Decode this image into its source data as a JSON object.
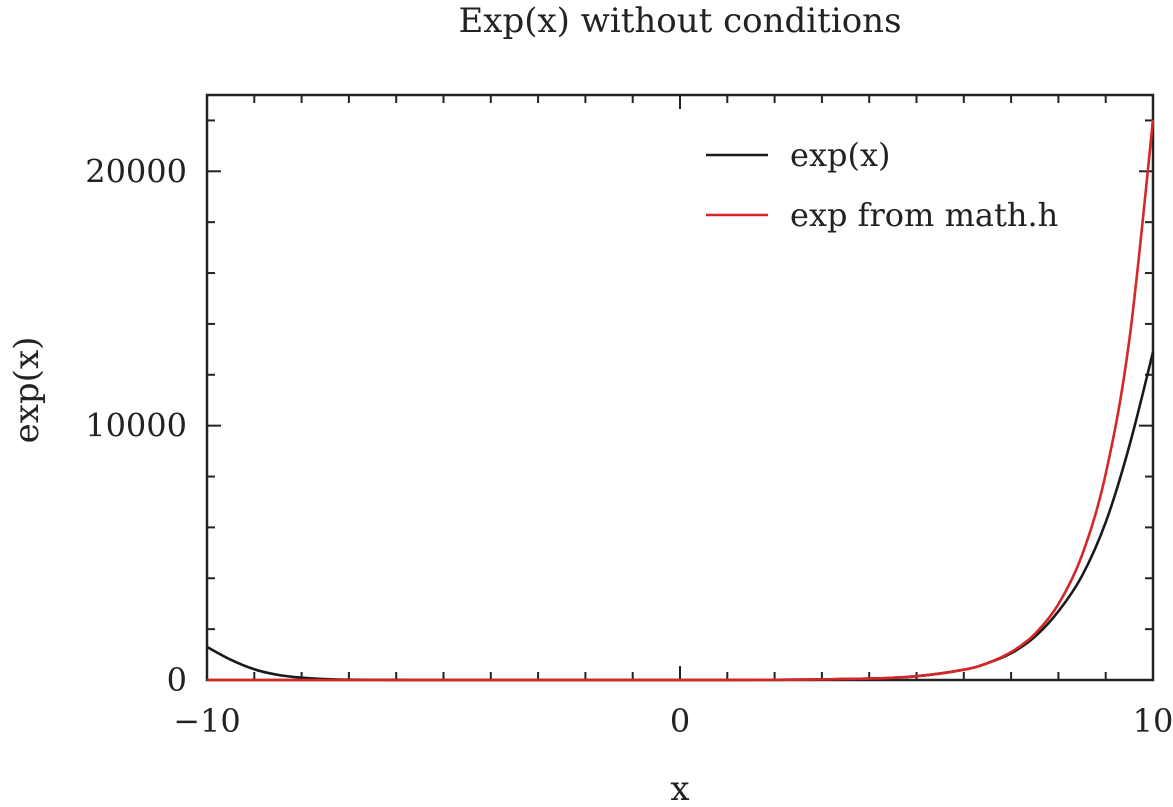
{
  "chart_data": {
    "type": "line",
    "title": "Exp(x) without conditions",
    "xlabel": "x",
    "ylabel": "exp(x)",
    "xlim": [
      -10,
      10
    ],
    "ylim": [
      0,
      23000
    ],
    "xticks": [
      -10,
      0,
      10
    ],
    "xtick_labels": [
      "−10",
      "0",
      "10"
    ],
    "yticks": [
      0,
      10000,
      20000
    ],
    "ytick_labels": [
      "0",
      "10000",
      "20000"
    ],
    "grid": false,
    "legend_position": "top-right",
    "series": [
      {
        "name": "exp(x)",
        "color": "#1a1a1a",
        "x": [
          -10,
          -9.5,
          -9,
          -8.5,
          -8,
          -7.5,
          -7,
          -6,
          -5,
          -4,
          -2,
          0,
          2,
          4,
          5,
          6,
          6.5,
          7,
          7.5,
          8,
          8.5,
          9,
          9.5,
          10
        ],
        "y": [
          1300,
          800,
          420,
          200,
          90,
          35,
          12,
          2,
          0,
          0,
          0,
          1,
          7,
          55,
          148,
          403,
          660,
          1050,
          1700,
          2700,
          4100,
          6200,
          9200,
          12900
        ]
      },
      {
        "name": "exp from math.h",
        "color": "#d62728",
        "x": [
          -10,
          -6,
          -2,
          0,
          2,
          4,
          5,
          6,
          6.5,
          7,
          7.5,
          8,
          8.5,
          9,
          9.5,
          10
        ],
        "y": [
          0,
          0,
          0,
          1,
          7,
          55,
          148,
          403,
          665,
          1097,
          1808,
          2981,
          4915,
          8103,
          13360,
          22026
        ]
      }
    ]
  }
}
